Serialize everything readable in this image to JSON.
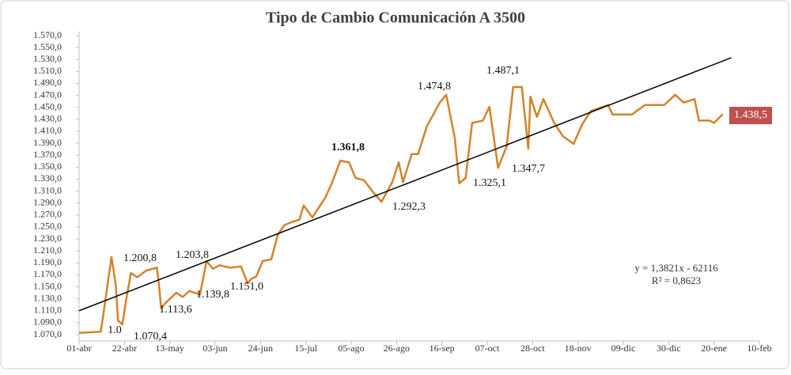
{
  "chart_data": {
    "type": "line",
    "title": "Tipo de Cambio Comunicación A 3500",
    "x": [
      0,
      10,
      11,
      15,
      17,
      18,
      20,
      22,
      24,
      27,
      31,
      36,
      37,
      38,
      40,
      45,
      48,
      51,
      56,
      59,
      62,
      65,
      70,
      75,
      78,
      80,
      82,
      85,
      89,
      92,
      95,
      99,
      102,
      104,
      108,
      114,
      117,
      121,
      125,
      128,
      132,
      136,
      140,
      145,
      148,
      150,
      154,
      157,
      161,
      167,
      170,
      174,
      176,
      179,
      182,
      187,
      190,
      194,
      198,
      201,
      205,
      208,
      209,
      212,
      215,
      220,
      224,
      229,
      233,
      237,
      245,
      247,
      256,
      262,
      271,
      276,
      280,
      285,
      287,
      292,
      294,
      298
    ],
    "series": [
      {
        "name": "Tipo de Cambio",
        "color": "#d2832a",
        "values": [
          1073,
          1075,
          1098,
          1200,
          1153,
          1094,
          1087,
          1133,
          1173,
          1166,
          1177,
          1182,
          1153,
          1114,
          1123,
          1140,
          1133,
          1143,
          1137,
          1193,
          1180,
          1186,
          1182,
          1184,
          1156,
          1164,
          1167,
          1193,
          1196,
          1237,
          1253,
          1259,
          1262,
          1286,
          1266,
          1299,
          1323,
          1361,
          1358,
          1332,
          1328,
          1309,
          1292,
          1325,
          1358,
          1325,
          1372,
          1372,
          1418,
          1458,
          1471,
          1398,
          1323,
          1332,
          1424,
          1428,
          1451,
          1349,
          1385,
          1484,
          1484,
          1381,
          1468,
          1434,
          1464,
          1424,
          1402,
          1389,
          1422,
          1444,
          1454,
          1438,
          1438,
          1454,
          1454,
          1471,
          1458,
          1464,
          1428,
          1428,
          1424,
          1438.5
        ]
      }
    ],
    "trendline": {
      "color": "#000000",
      "x": [
        0,
        302
      ],
      "values": [
        1110,
        1533
      ]
    },
    "last_label": "1.438,5",
    "annotations": [
      "1.200,8",
      "1.0",
      "1.070,4",
      "1.113,6",
      "1.203,8",
      "1.139,8",
      "1.151,0",
      "1.361,8",
      "1.292,3",
      "1.474,8",
      "1.487,1",
      "1.325,1",
      "1.347,7"
    ],
    "equation": [
      "y = 1,3821x - 62116",
      "R² = 0,8623"
    ],
    "xlim": [
      0,
      315
    ],
    "xticks": [
      {
        "value": 0,
        "label": "01-abr"
      },
      {
        "value": 21,
        "label": "22-abr"
      },
      {
        "value": 42,
        "label": "13-may"
      },
      {
        "value": 63,
        "label": "03-jun"
      },
      {
        "value": 84,
        "label": "24-jun"
      },
      {
        "value": 105,
        "label": "15-jul"
      },
      {
        "value": 126,
        "label": "05-ago"
      },
      {
        "value": 147,
        "label": "26-ago"
      },
      {
        "value": 168,
        "label": "16-sep"
      },
      {
        "value": 189,
        "label": "07-oct"
      },
      {
        "value": 210,
        "label": "28-oct"
      },
      {
        "value": 231,
        "label": "18-nov"
      },
      {
        "value": 252,
        "label": "09-dic"
      },
      {
        "value": 273,
        "label": "30-dic"
      },
      {
        "value": 294,
        "label": "20-ene"
      },
      {
        "value": 315,
        "label": "10-feb"
      }
    ],
    "ylim": [
      1070,
      1570
    ],
    "yticks": [
      {
        "value": 1070,
        "label": "1.070,0"
      },
      {
        "value": 1090,
        "label": "1.090,0"
      },
      {
        "value": 1110,
        "label": "1.110,0"
      },
      {
        "value": 1130,
        "label": "1.130,0"
      },
      {
        "value": 1150,
        "label": "1.150,0"
      },
      {
        "value": 1170,
        "label": "1.170,0"
      },
      {
        "value": 1190,
        "label": "1.190,0"
      },
      {
        "value": 1210,
        "label": "1.210,0"
      },
      {
        "value": 1230,
        "label": "1.230,0"
      },
      {
        "value": 1250,
        "label": "1.250,0"
      },
      {
        "value": 1270,
        "label": "1.270,0"
      },
      {
        "value": 1290,
        "label": "1.290,0"
      },
      {
        "value": 1310,
        "label": "1.310,0"
      },
      {
        "value": 1330,
        "label": "1.330,0"
      },
      {
        "value": 1350,
        "label": "1.350,0"
      },
      {
        "value": 1370,
        "label": "1.370,0"
      },
      {
        "value": 1390,
        "label": "1.390,0"
      },
      {
        "value": 1410,
        "label": "1.410,0"
      },
      {
        "value": 1430,
        "label": "1.430,0"
      },
      {
        "value": 1450,
        "label": "1.450,0"
      },
      {
        "value": 1470,
        "label": "1.470,0"
      },
      {
        "value": 1490,
        "label": "1.490,0"
      },
      {
        "value": 1510,
        "label": "1.510,0"
      },
      {
        "value": 1530,
        "label": "1.530,0"
      },
      {
        "value": 1550,
        "label": "1.550,0"
      },
      {
        "value": 1570,
        "label": "1.570,0"
      }
    ],
    "last_label_color": "#c0504d"
  }
}
